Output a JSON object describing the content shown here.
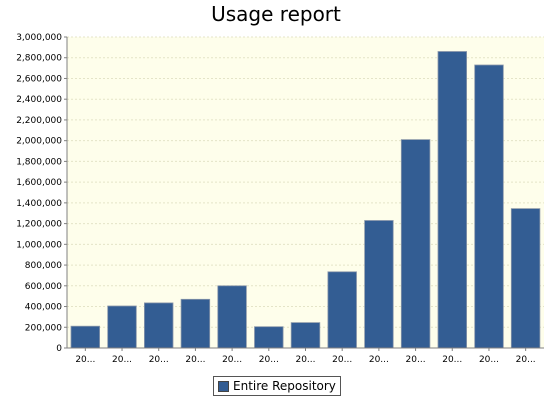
{
  "chart_data": {
    "type": "bar",
    "title": "Usage report",
    "xlabel": "",
    "ylabel": "",
    "categories": [
      "20...",
      "20...",
      "20...",
      "20...",
      "20...",
      "20...",
      "20...",
      "20...",
      "20...",
      "20...",
      "20...",
      "20...",
      "20..."
    ],
    "series": [
      {
        "name": "Entire Repository",
        "values": [
          210000,
          405000,
          435000,
          470000,
          600000,
          205000,
          245000,
          735000,
          1230000,
          2010000,
          2860000,
          2730000,
          1345000
        ]
      }
    ],
    "ylim": [
      0,
      3000000
    ],
    "yticks": [
      "0",
      "200,000",
      "400,000",
      "600,000",
      "800,000",
      "1,000,000",
      "1,200,000",
      "1,400,000",
      "1,600,000",
      "1,800,000",
      "2,000,000",
      "2,200,000",
      "2,400,000",
      "2,600,000",
      "2,800,000",
      "3,000,000"
    ],
    "grid": true,
    "legend_position": "bottom",
    "colors": {
      "bar": "#335d93",
      "bar_stroke": "#8a97aa",
      "plot_background": "#fefeeb",
      "gridline": "#e4e4c8",
      "axis": "#808080"
    }
  }
}
